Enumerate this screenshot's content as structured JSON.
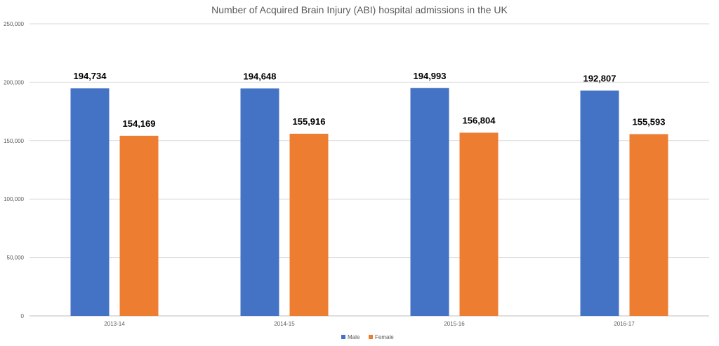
{
  "chart_data": {
    "type": "bar",
    "title": "Number of Acquired Brain Injury (ABI) hospital admissions in the UK",
    "categories": [
      "2013-14",
      "2014-15",
      "2015-16",
      "2016-17"
    ],
    "series": [
      {
        "name": "Male",
        "color": "#4472c4",
        "values": [
          194734,
          194648,
          194993,
          192807
        ]
      },
      {
        "name": "Female",
        "color": "#ed7d31",
        "values": [
          154169,
          155916,
          156804,
          155593
        ]
      }
    ],
    "data_labels": [
      [
        "194,734",
        "194,648",
        "194,993",
        "192,807"
      ],
      [
        "154,169",
        "155,916",
        "156,804",
        "155,593"
      ]
    ],
    "ylim": [
      0,
      250000
    ],
    "yticks": [
      0,
      50000,
      100000,
      150000,
      200000,
      250000
    ],
    "ytick_labels": [
      "0",
      "50,000",
      "100,000",
      "150,000",
      "200,000",
      "250,000"
    ],
    "grid": true,
    "legend": "bottom"
  }
}
